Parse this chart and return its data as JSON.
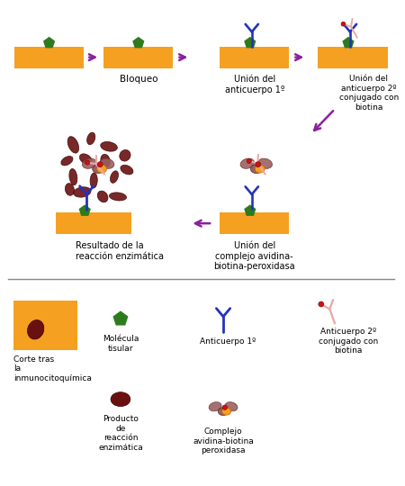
{
  "bg_color": "#ffffff",
  "orange_color": "#F5A020",
  "green_color": "#2E7B1E",
  "dark_red_color": "#6B1010",
  "blue_color": "#2233BB",
  "pink_color": "#E8AAAA",
  "purple_color": "#882299",
  "brown_complex": "#8B5050",
  "labels": {
    "bloqueo": "Bloqueo",
    "union1": "Unión del\nanticuerpo 1º",
    "union2": "Unión del\nanticuerpo 2º\nconjugado con\nbiotina",
    "union_complejo": "Unión del\ncomplejo avidina-\nbiotina-peroxidasa",
    "resultado": "Resultado de la\nreacción enzimática",
    "legend_corte": "Corte tras\nla\ninmunocitoquímica",
    "legend_molecula": "Molécula\ntisular",
    "legend_producto": "Producto\nde\nreacción\nenzimática",
    "legend_anticuerpo1": "Anticuerpo 1º",
    "legend_anticuerpo2": "Anticuerpo 2º\nconjugado con\nbiotina",
    "legend_complejo": "Complejo\navidina-biotina\nperoxidasa"
  }
}
